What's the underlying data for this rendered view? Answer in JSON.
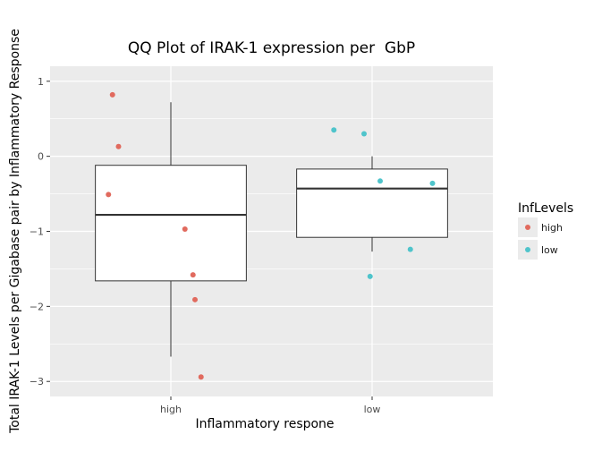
{
  "chart_data": {
    "type": "boxplot",
    "title": "QQ Plot of IRAK-1 expression per  GbP",
    "xlabel": "Inflammatory respone",
    "ylabel": "Total IRAK-1 Levels per Gigabase pair by Inflammatory Response",
    "categories": [
      "high",
      "low"
    ],
    "ylim": [
      -3.2,
      1.2
    ],
    "yticks": [
      1,
      0,
      -1,
      -2,
      -3
    ],
    "ytick_labels": [
      "1",
      "0",
      "−1",
      "−2",
      "−3"
    ],
    "grid": true,
    "boxes": [
      {
        "category": "high",
        "whisker_low": -2.67,
        "q1": -1.66,
        "median": -0.78,
        "q3": -0.12,
        "whisker_high": 0.72
      },
      {
        "category": "low",
        "whisker_low": -1.27,
        "q1": -1.08,
        "median": -0.43,
        "q3": -0.17,
        "whisker_high": 0.0
      }
    ],
    "points": [
      {
        "group": "high",
        "x": 0.71,
        "y": 0.82
      },
      {
        "group": "high",
        "x": 0.74,
        "y": 0.13
      },
      {
        "group": "high",
        "x": 0.69,
        "y": -0.51
      },
      {
        "group": "high",
        "x": 1.07,
        "y": -0.97
      },
      {
        "group": "high",
        "x": 1.11,
        "y": -1.58
      },
      {
        "group": "high",
        "x": 1.12,
        "y": -1.91
      },
      {
        "group": "high",
        "x": 1.15,
        "y": -2.94
      },
      {
        "group": "low",
        "x": 1.81,
        "y": 0.35
      },
      {
        "group": "low",
        "x": 1.96,
        "y": 0.3
      },
      {
        "group": "low",
        "x": 2.04,
        "y": -0.33
      },
      {
        "group": "low",
        "x": 2.3,
        "y": -0.36
      },
      {
        "group": "low",
        "x": 2.19,
        "y": -1.24
      },
      {
        "group": "low",
        "x": 1.99,
        "y": -1.6
      }
    ],
    "legend": {
      "title": "InfLevels",
      "placement": "right",
      "entries": [
        {
          "label": "high",
          "color": "#E16A5E"
        },
        {
          "label": "low",
          "color": "#4FC4CB"
        }
      ]
    },
    "colors": {
      "panel": "#EBEBEB",
      "grid": "#FFFFFF",
      "box_fill": "#FFFFFF",
      "box_line": "#333333"
    }
  }
}
